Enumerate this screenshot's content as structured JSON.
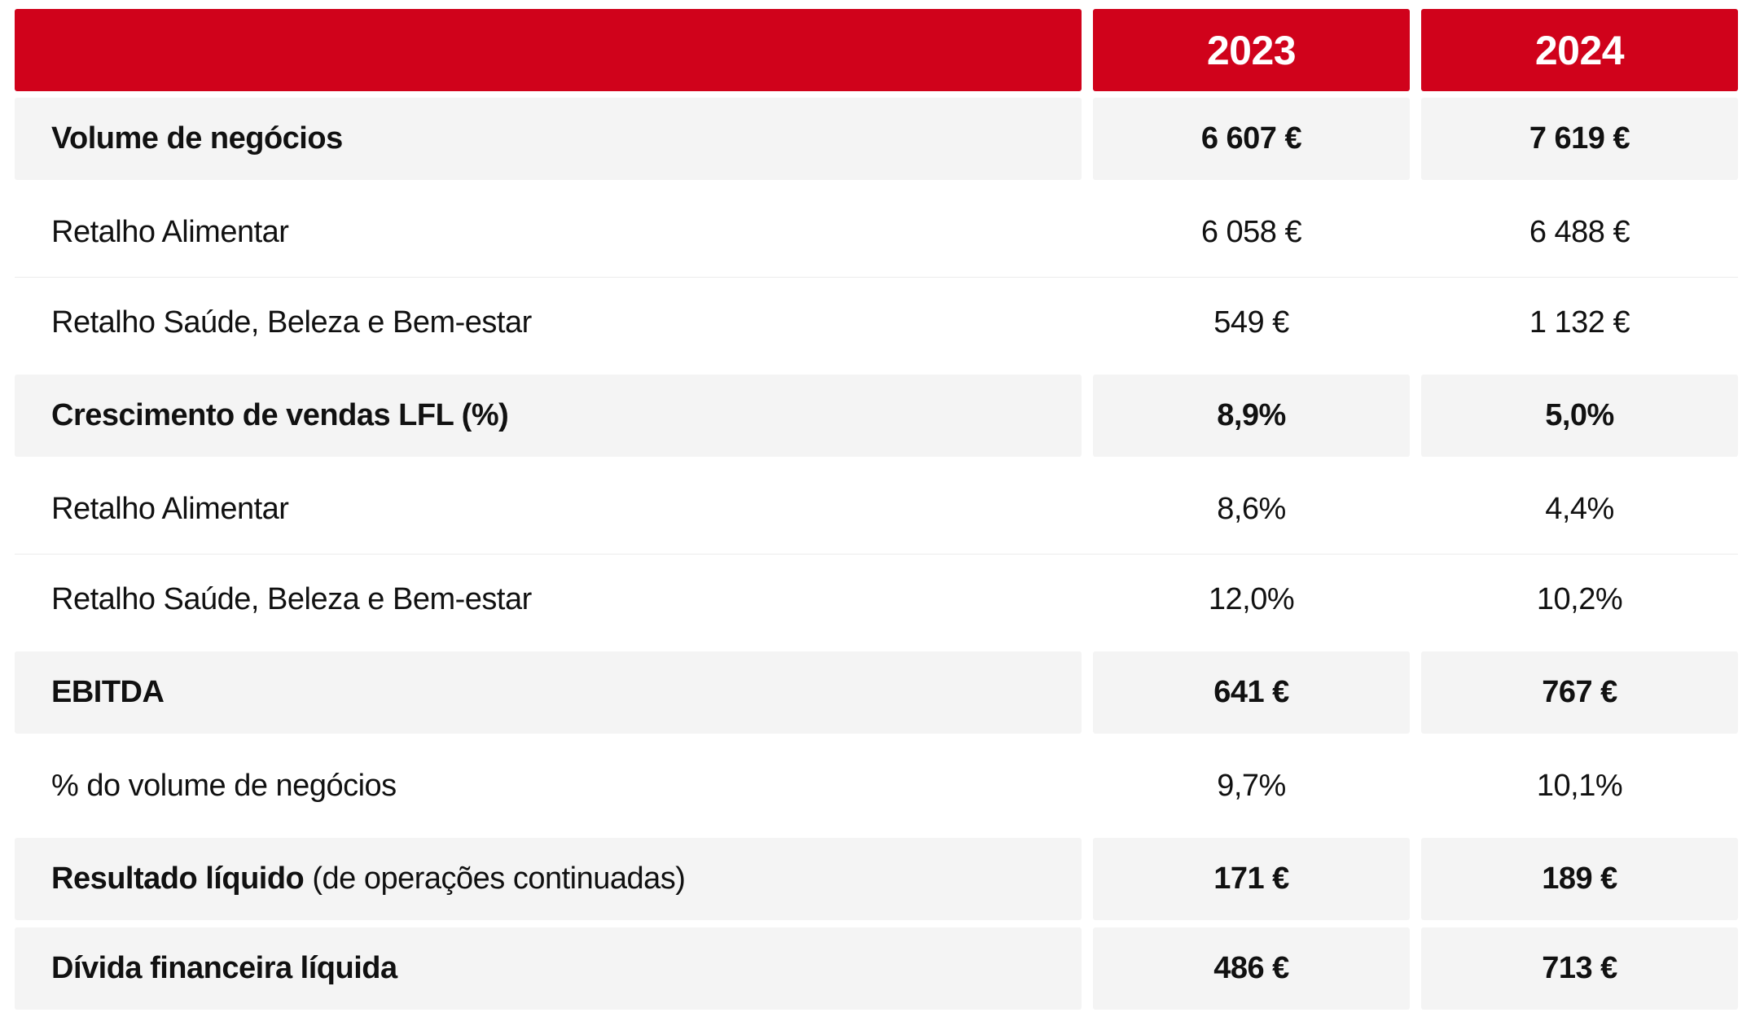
{
  "colors": {
    "accent": "#d0021b",
    "shaded_row": "#f4f4f4",
    "text": "#111111"
  },
  "header": {
    "label": "",
    "year1": "2023",
    "year2": "2024"
  },
  "rows": [
    {
      "label": "Volume de negócios",
      "v2023": "6 607 €",
      "v2024": "7 619 €",
      "style": "bold"
    },
    {
      "label": "Retalho Alimentar",
      "v2023": "6 058 €",
      "v2024": "6 488 €",
      "style": "plain"
    },
    {
      "label": "Retalho Saúde, Beleza e Bem-estar",
      "v2023": "549 €",
      "v2024": "1 132 €",
      "style": "plain"
    },
    {
      "label": "Crescimento de vendas LFL (%)",
      "v2023": "8,9%",
      "v2024": "5,0%",
      "style": "bold"
    },
    {
      "label": "Retalho Alimentar",
      "v2023": "8,6%",
      "v2024": "4,4%",
      "style": "plain"
    },
    {
      "label": "Retalho Saúde, Beleza e Bem-estar",
      "v2023": "12,0%",
      "v2024": "10,2%",
      "style": "plain"
    },
    {
      "label": "EBITDA",
      "v2023": "641 €",
      "v2024": "767 €",
      "style": "bold"
    },
    {
      "label": "% do volume de negócios",
      "v2023": "9,7%",
      "v2024": "10,1%",
      "style": "plain"
    },
    {
      "label": "Resultado líquido",
      "label_suffix": "(de operações continuadas)",
      "v2023": "171 €",
      "v2024": "189 €",
      "style": "bold"
    },
    {
      "label": "Dívida financeira líquida",
      "v2023": "486 €",
      "v2024": "713 €",
      "style": "bold"
    }
  ]
}
